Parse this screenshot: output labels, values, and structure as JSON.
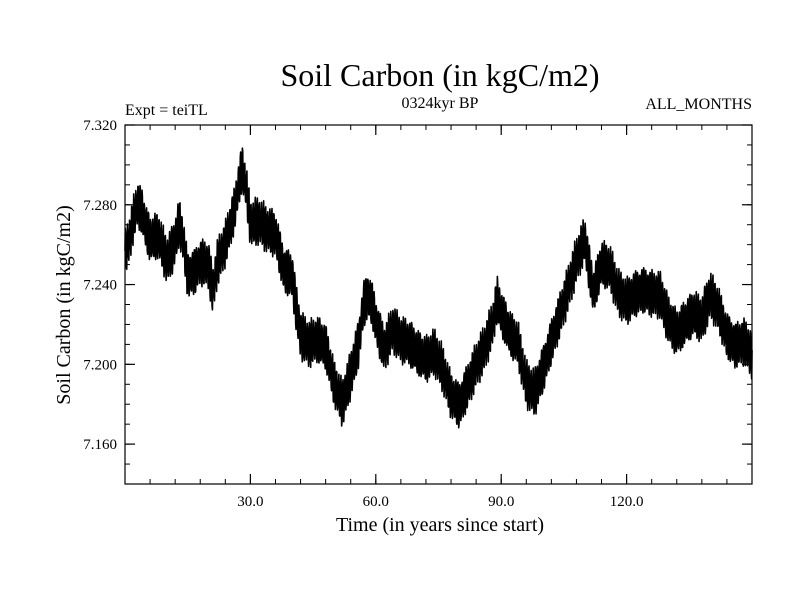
{
  "chart_data": {
    "type": "line",
    "title": "Soil Carbon (in kgC/m2)",
    "subtitle_left": "Expt = teiTL",
    "subtitle_center": "0324kyr BP",
    "subtitle_right": "ALL_MONTHS",
    "xlabel": "Time (in years since start)",
    "ylabel": "Soil Carbon (in kgC/m2)",
    "xlim": [
      0,
      150
    ],
    "ylim": [
      7.14,
      7.32
    ],
    "xticks": [
      30,
      60,
      90,
      120
    ],
    "xtick_labels": [
      "30.0",
      "60.0",
      "90.0",
      "120.0"
    ],
    "yticks": [
      7.16,
      7.2,
      7.24,
      7.28,
      7.32
    ],
    "ytick_labels": [
      "7.160",
      "7.200",
      "7.240",
      "7.280",
      "7.320"
    ],
    "xminor_step": 6,
    "yminor_step": 0.01,
    "grid": false,
    "series": [
      {
        "name": "Soil Carbon",
        "color": "#000000",
        "points_per_year": 12,
        "wiggle": 0.0095,
        "trend": [
          [
            0,
            7.255
          ],
          [
            1,
            7.262
          ],
          [
            2,
            7.272
          ],
          [
            3,
            7.28
          ],
          [
            4,
            7.276
          ],
          [
            5,
            7.268
          ],
          [
            6,
            7.262
          ],
          [
            8,
            7.264
          ],
          [
            10,
            7.252
          ],
          [
            11,
            7.256
          ],
          [
            12,
            7.262
          ],
          [
            13,
            7.272
          ],
          [
            14,
            7.262
          ],
          [
            15,
            7.245
          ],
          [
            17,
            7.248
          ],
          [
            18,
            7.252
          ],
          [
            20,
            7.25
          ],
          [
            21,
            7.236
          ],
          [
            22,
            7.25
          ],
          [
            24,
            7.26
          ],
          [
            26,
            7.275
          ],
          [
            28,
            7.298
          ],
          [
            29,
            7.288
          ],
          [
            30,
            7.27
          ],
          [
            32,
            7.272
          ],
          [
            34,
            7.268
          ],
          [
            36,
            7.266
          ],
          [
            38,
            7.248
          ],
          [
            40,
            7.245
          ],
          [
            41,
            7.228
          ],
          [
            42,
            7.215
          ],
          [
            44,
            7.21
          ],
          [
            46,
            7.212
          ],
          [
            48,
            7.208
          ],
          [
            50,
            7.19
          ],
          [
            52,
            7.18
          ],
          [
            54,
            7.195
          ],
          [
            56,
            7.212
          ],
          [
            57,
            7.23
          ],
          [
            58,
            7.235
          ],
          [
            59,
            7.232
          ],
          [
            60,
            7.222
          ],
          [
            62,
            7.208
          ],
          [
            64,
            7.218
          ],
          [
            66,
            7.212
          ],
          [
            68,
            7.21
          ],
          [
            70,
            7.205
          ],
          [
            72,
            7.202
          ],
          [
            74,
            7.206
          ],
          [
            76,
            7.198
          ],
          [
            78,
            7.185
          ],
          [
            80,
            7.18
          ],
          [
            82,
            7.19
          ],
          [
            84,
            7.2
          ],
          [
            86,
            7.208
          ],
          [
            88,
            7.22
          ],
          [
            89,
            7.232
          ],
          [
            90,
            7.225
          ],
          [
            92,
            7.215
          ],
          [
            94,
            7.21
          ],
          [
            96,
            7.19
          ],
          [
            98,
            7.186
          ],
          [
            100,
            7.198
          ],
          [
            102,
            7.212
          ],
          [
            104,
            7.225
          ],
          [
            106,
            7.238
          ],
          [
            108,
            7.252
          ],
          [
            110,
            7.262
          ],
          [
            112,
            7.235
          ],
          [
            114,
            7.25
          ],
          [
            116,
            7.248
          ],
          [
            118,
            7.236
          ],
          [
            120,
            7.232
          ],
          [
            122,
            7.236
          ],
          [
            124,
            7.238
          ],
          [
            126,
            7.236
          ],
          [
            128,
            7.235
          ],
          [
            130,
            7.222
          ],
          [
            132,
            7.215
          ],
          [
            134,
            7.22
          ],
          [
            136,
            7.225
          ],
          [
            138,
            7.222
          ],
          [
            140,
            7.235
          ],
          [
            142,
            7.228
          ],
          [
            144,
            7.215
          ],
          [
            146,
            7.21
          ],
          [
            148,
            7.212
          ],
          [
            150,
            7.205
          ]
        ]
      }
    ]
  }
}
